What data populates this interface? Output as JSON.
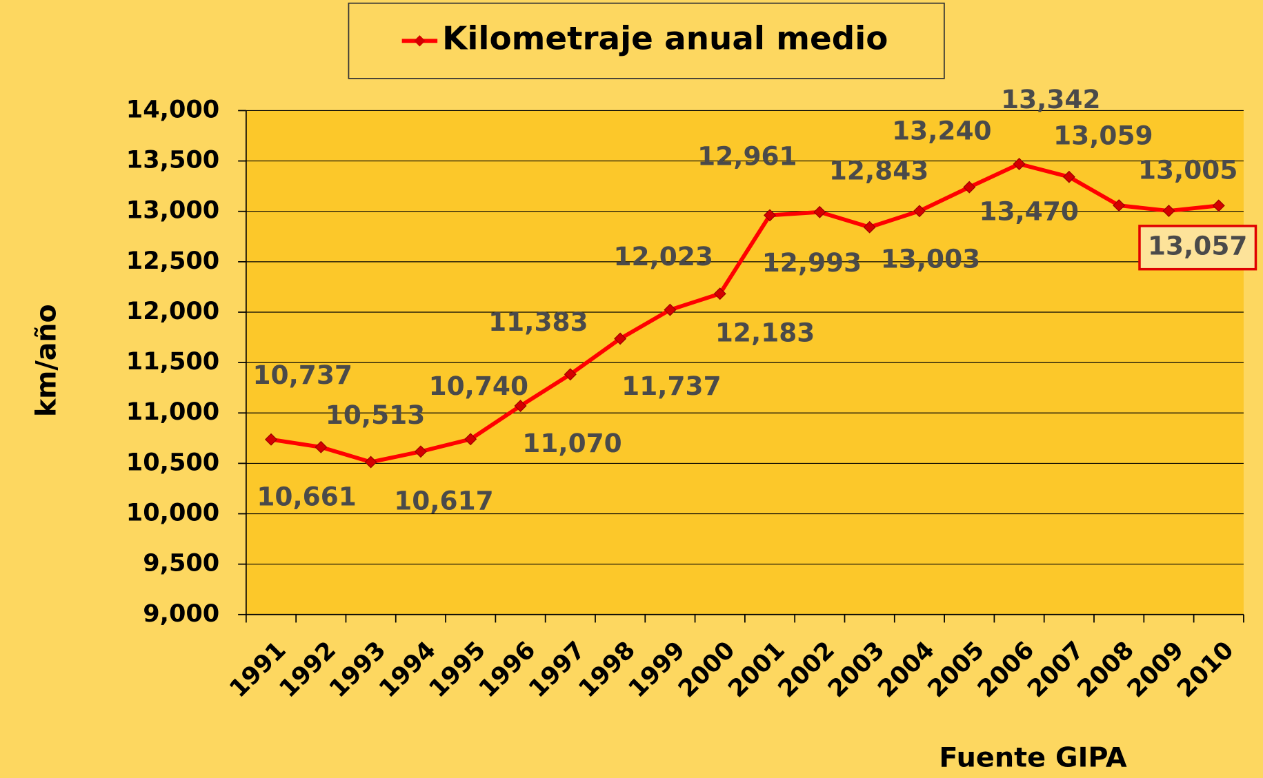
{
  "chart_data": {
    "type": "line",
    "y_label": "km/año",
    "source": "Fuente GIPA",
    "categories": [
      "1991",
      "1992",
      "1993",
      "1994",
      "1995",
      "1996",
      "1997",
      "1998",
      "1999",
      "2000",
      "2001",
      "2002",
      "2003",
      "2004",
      "2005",
      "2006",
      "2007",
      "2008",
      "2009",
      "2010"
    ],
    "series": [
      {
        "name": "Kilometraje anual medio",
        "color": "#ff0000",
        "values": [
          10737,
          10661,
          10513,
          10617,
          10740,
          11070,
          11383,
          11737,
          12023,
          12183,
          12961,
          12993,
          12843,
          13003,
          13240,
          13470,
          13342,
          13059,
          13005,
          13057
        ],
        "value_labels": [
          "10,737",
          "10,661",
          "10,513",
          "10,617",
          "10,740",
          "11,070",
          "11,383",
          "11,737",
          "12,023",
          "12,183",
          "12,961",
          "12,993",
          "12,843",
          "13,003",
          "13,240",
          "13,470",
          "13,342",
          "13,059",
          "13,005",
          "13,057"
        ]
      }
    ],
    "ylim": [
      9000,
      14000
    ],
    "yticks": [
      {
        "value": 9000,
        "label": "9,000"
      },
      {
        "value": 9500,
        "label": "9,500"
      },
      {
        "value": 10000,
        "label": "10,000"
      },
      {
        "value": 10500,
        "label": "10,500"
      },
      {
        "value": 11000,
        "label": "11,000"
      },
      {
        "value": 11500,
        "label": "11,500"
      },
      {
        "value": 12000,
        "label": "12,000"
      },
      {
        "value": 12500,
        "label": "12,500"
      },
      {
        "value": 13000,
        "label": "13,000"
      },
      {
        "value": 13500,
        "label": "13,500"
      },
      {
        "value": 14000,
        "label": "14,000"
      }
    ],
    "grid": true
  }
}
